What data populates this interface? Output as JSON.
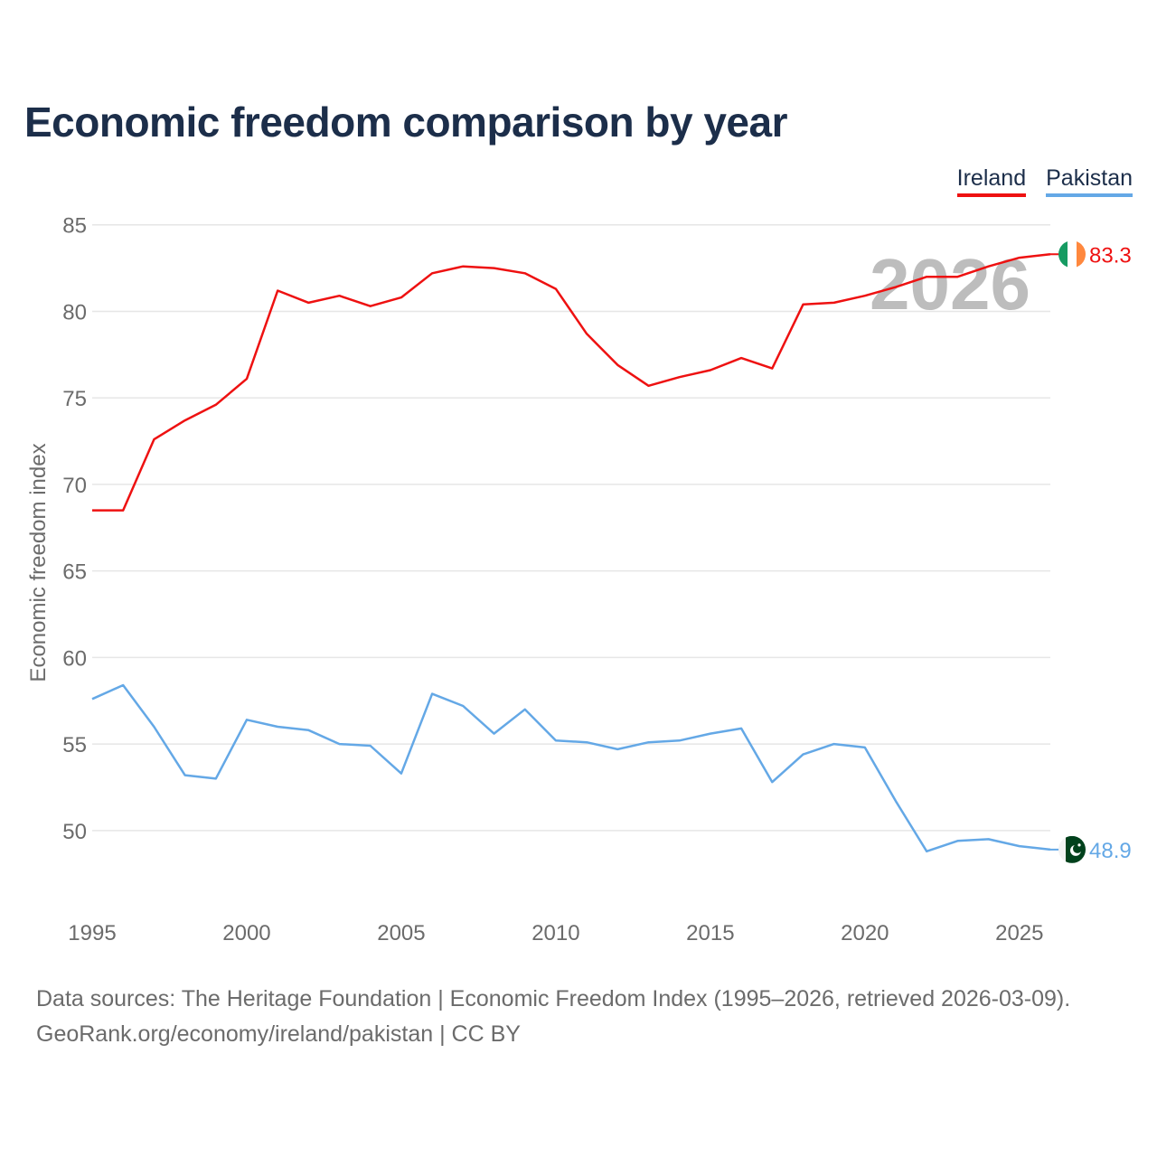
{
  "colors": {
    "ireland": "#ee1111",
    "pakistan": "#64a8e6",
    "title": "#1c2e4a",
    "axis_text": "#6b6b6b",
    "grid": "#e6e6e6",
    "watermark": "#bdbdbd"
  },
  "chart_data": {
    "type": "line",
    "title": "Economic freedom comparison by year",
    "ylabel": "Economic freedom index",
    "xlabel": "",
    "xlim": [
      1995,
      2026
    ],
    "ylim": [
      45.5,
      86.5
    ],
    "yticks": [
      50,
      55,
      60,
      65,
      70,
      75,
      80,
      85
    ],
    "xticks": [
      1995,
      2000,
      2005,
      2010,
      2015,
      2020,
      2025
    ],
    "watermark_year": "2026",
    "grid": "horizontal",
    "legend_position": "top-right",
    "x": [
      1995,
      1996,
      1997,
      1998,
      1999,
      2000,
      2001,
      2002,
      2003,
      2004,
      2005,
      2006,
      2007,
      2008,
      2009,
      2010,
      2011,
      2012,
      2013,
      2014,
      2015,
      2016,
      2017,
      2018,
      2019,
      2020,
      2021,
      2022,
      2023,
      2024,
      2025,
      2026
    ],
    "series": [
      {
        "name": "Ireland",
        "color_key": "ireland",
        "end_label": "83.3",
        "flag_icon": "ireland-flag-icon",
        "values": [
          68.5,
          68.5,
          72.6,
          73.7,
          74.6,
          76.1,
          81.2,
          80.5,
          80.9,
          80.3,
          80.8,
          82.2,
          82.6,
          82.5,
          82.2,
          81.3,
          78.7,
          76.9,
          75.7,
          76.2,
          76.6,
          77.3,
          76.7,
          80.4,
          80.5,
          80.9,
          81.4,
          82.0,
          82.0,
          82.6,
          83.1,
          83.3
        ]
      },
      {
        "name": "Pakistan",
        "color_key": "pakistan",
        "end_label": "48.9",
        "flag_icon": "pakistan-flag-icon",
        "values": [
          57.6,
          58.4,
          56.0,
          53.2,
          53.0,
          56.4,
          56.0,
          55.8,
          55.0,
          54.9,
          53.3,
          57.9,
          57.2,
          55.6,
          57.0,
          55.2,
          55.1,
          54.7,
          55.1,
          55.2,
          55.6,
          55.9,
          52.8,
          54.4,
          55.0,
          54.8,
          51.7,
          48.8,
          49.4,
          49.5,
          49.1,
          48.9
        ]
      }
    ]
  },
  "footer": {
    "line1": "Data sources: The Heritage Foundation | Economic Freedom Index (1995–2026, retrieved 2026-03-09).",
    "line2": "GeoRank.org/economy/ireland/pakistan | CC BY"
  }
}
